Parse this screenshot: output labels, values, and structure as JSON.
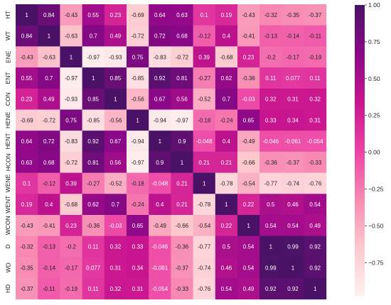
{
  "chart_data": {
    "type": "heatmap",
    "labels": [
      "HT",
      "WT",
      "ENE",
      "ENT",
      "CON",
      "HENE",
      "HENT",
      "HCON",
      "WENE",
      "WENT",
      "WCON",
      "D",
      "WD",
      "HD"
    ],
    "matrix": [
      [
        1,
        0.84,
        -0.43,
        0.55,
        0.23,
        -0.69,
        0.64,
        0.63,
        0.1,
        0.19,
        -0.43,
        -0.32,
        -0.35,
        -0.37
      ],
      [
        0.84,
        1,
        -0.63,
        0.7,
        0.49,
        -0.72,
        0.72,
        0.68,
        -0.12,
        0.4,
        -0.41,
        -0.13,
        -0.14,
        -0.11
      ],
      [
        -0.43,
        -0.63,
        1,
        -0.97,
        -0.93,
        0.75,
        -0.83,
        -0.72,
        0.39,
        -0.68,
        0.23,
        -0.2,
        -0.17,
        -0.19
      ],
      [
        0.55,
        0.7,
        -0.97,
        1,
        0.85,
        -0.85,
        0.92,
        0.81,
        -0.27,
        0.62,
        -0.36,
        0.11,
        0.077,
        0.11
      ],
      [
        0.23,
        0.49,
        -0.93,
        0.85,
        1,
        -0.56,
        0.67,
        0.56,
        -0.52,
        0.7,
        -0.03,
        0.32,
        0.31,
        0.32
      ],
      [
        -0.69,
        -0.72,
        0.75,
        -0.85,
        -0.56,
        1,
        -0.94,
        -0.97,
        -0.18,
        -0.24,
        0.65,
        0.33,
        0.34,
        0.31
      ],
      [
        0.64,
        0.72,
        -0.83,
        0.92,
        0.67,
        -0.94,
        1,
        0.9,
        -0.048,
        0.4,
        -0.49,
        -0.046,
        -0.061,
        -0.054
      ],
      [
        0.63,
        0.68,
        -0.72,
        0.81,
        0.56,
        -0.97,
        0.9,
        1,
        0.21,
        0.21,
        -0.66,
        -0.36,
        -0.37,
        -0.33
      ],
      [
        0.1,
        -0.12,
        0.39,
        -0.27,
        -0.52,
        -0.18,
        -0.048,
        0.21,
        1,
        -0.78,
        -0.54,
        -0.77,
        -0.74,
        -0.76
      ],
      [
        0.19,
        0.4,
        -0.68,
        0.62,
        0.7,
        -0.24,
        0.4,
        0.21,
        -0.78,
        1,
        0.22,
        0.5,
        0.46,
        0.54
      ],
      [
        -0.43,
        -0.41,
        0.23,
        -0.36,
        -0.03,
        0.65,
        -0.49,
        -0.66,
        -0.54,
        0.22,
        1,
        0.54,
        0.54,
        0.49
      ],
      [
        -0.32,
        -0.13,
        -0.2,
        0.11,
        0.32,
        0.33,
        -0.046,
        -0.36,
        -0.77,
        0.5,
        0.54,
        1,
        0.99,
        0.92
      ],
      [
        -0.35,
        -0.14,
        -0.17,
        0.077,
        0.31,
        0.34,
        -0.061,
        -0.37,
        -0.74,
        0.46,
        0.54,
        0.99,
        1,
        0.92
      ],
      [
        -0.37,
        -0.11,
        -0.19,
        0.11,
        0.32,
        0.31,
        -0.054,
        -0.33,
        -0.76,
        0.54,
        0.49,
        0.92,
        0.92,
        1
      ]
    ],
    "value_range": [
      -1,
      1
    ],
    "colorbar_ticks": [
      "1.00",
      "0.75",
      "0.50",
      "0.25",
      "0.00",
      "-0.25",
      "-0.50",
      "-0.75"
    ],
    "colormap": [
      "#fff0f0",
      "#fcc9cf",
      "#f88ab3",
      "#ec43a6",
      "#c8158f",
      "#8c0888",
      "#4a1266"
    ],
    "grid": false
  }
}
